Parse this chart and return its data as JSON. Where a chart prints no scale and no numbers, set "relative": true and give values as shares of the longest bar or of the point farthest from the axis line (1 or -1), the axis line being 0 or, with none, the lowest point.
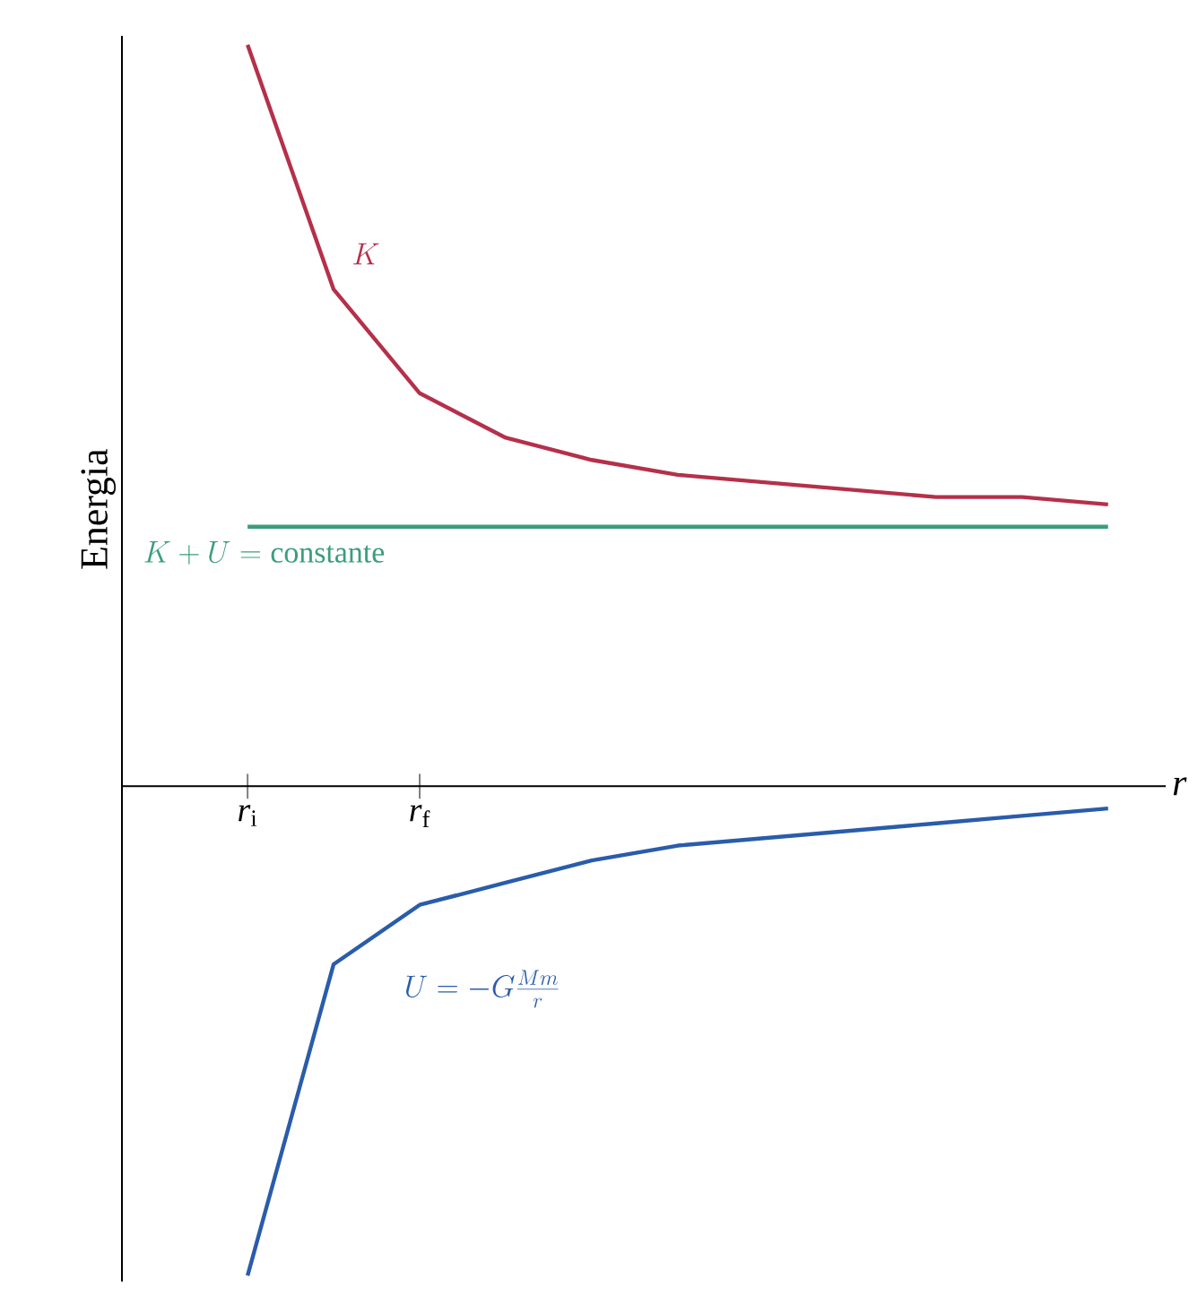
{
  "chart_data": {
    "type": "line",
    "relative": true,
    "ylabel": "Energia",
    "xlabel": "r",
    "categories": [
      "*r*$_{i}$",
      null,
      "*r*$_{f}$",
      null,
      null,
      null,
      null,
      null,
      null,
      null,
      null
    ],
    "series": [
      {
        "color": "#b5304a",
        "values": [
          1.0,
          0.67,
          0.53,
          0.47,
          0.44,
          0.42,
          0.41,
          0.4,
          0.39,
          0.39,
          0.38
        ]
      },
      {
        "color": "#3a9e7a",
        "values": [
          0.35,
          0.35,
          0.35,
          0.35,
          0.35,
          0.35,
          0.35,
          0.35,
          0.35,
          0.35,
          0.35
        ]
      },
      {
        "color": "#2a5caa",
        "values": [
          -0.66,
          -0.24,
          -0.16,
          -0.13,
          -0.1,
          -0.08,
          -0.07,
          -0.06,
          -0.05,
          -0.04,
          -0.03
        ]
      }
    ],
    "annotations": [
      "K",
      "K + U = \\mathrm{constante}",
      "U = -G\\frac{Mm}{r}"
    ]
  }
}
